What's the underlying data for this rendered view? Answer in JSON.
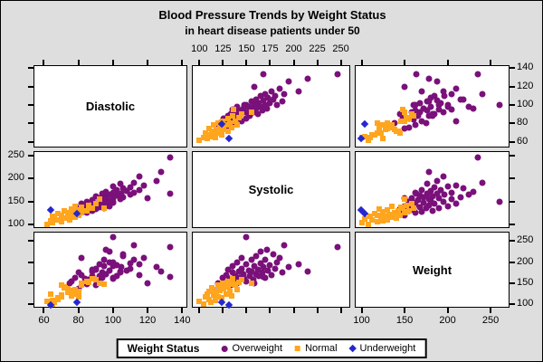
{
  "colors": {
    "overweight": "#7A107A",
    "normal": "#FFA51E",
    "underweight": "#2727CF",
    "canvas_bg": "#DEDEDE",
    "panel_bg": "#FFFFFF",
    "frame": "#000000"
  },
  "legend": {
    "title": "Weight Status",
    "entries": [
      {
        "label": "Overweight",
        "marker": "circle-icon",
        "color": "#7A107A"
      },
      {
        "label": "Normal",
        "marker": "square-icon",
        "color": "#FFA51E"
      },
      {
        "label": "Underweight",
        "marker": "diamond-icon",
        "color": "#2727CF"
      }
    ]
  },
  "chart_data": {
    "type": "scatter",
    "subtype": "scatter-plot-matrix",
    "title": "Blood Pressure Trends by Weight Status",
    "subtitle": "in heart disease patients under 50",
    "diagonal": [
      "Diastolic",
      "Systolic",
      "Weight"
    ],
    "grid": false,
    "legend_position": "bottom",
    "axes": {
      "systolic": {
        "domain": [
          92,
          260
        ],
        "ticks": [
          100,
          125,
          150,
          175,
          200,
          225,
          250
        ],
        "coarse_ticks": [
          100,
          150,
          200,
          250
        ]
      },
      "diastolic": {
        "domain": [
          54,
          143
        ],
        "ticks": [
          60,
          80,
          100,
          120,
          140
        ]
      },
      "weight": {
        "domain": [
          92,
          272
        ],
        "ticks": [
          100,
          150,
          200,
          250
        ]
      }
    },
    "axis_label_sides": {
      "top": "systolic (column 2)",
      "left": "systolic (row 2)",
      "right": [
        "diastolic (row 1)",
        "weight (row 3)"
      ],
      "bottom": [
        "diastolic (column 1)",
        "weight (column 3)"
      ]
    },
    "cells": [
      {
        "row": 0,
        "col": 1,
        "x": "systolic",
        "y": "diastolic"
      },
      {
        "row": 0,
        "col": 2,
        "x": "weight",
        "y": "diastolic"
      },
      {
        "row": 1,
        "col": 0,
        "x": "diastolic",
        "y": "systolic"
      },
      {
        "row": 1,
        "col": 2,
        "x": "weight",
        "y": "systolic"
      },
      {
        "row": 2,
        "col": 0,
        "x": "diastolic",
        "y": "weight"
      },
      {
        "row": 2,
        "col": 1,
        "x": "systolic",
        "y": "weight"
      }
    ],
    "status_codes": {
      "O": "Overweight",
      "N": "Normal",
      "U": "Underweight"
    },
    "patient_columns": [
      "systolic",
      "diastolic",
      "weight",
      "status"
    ],
    "patients": [
      [
        120,
        75,
        150,
        "O"
      ],
      [
        122,
        80,
        138,
        "O"
      ],
      [
        125,
        78,
        162,
        "O"
      ],
      [
        126,
        85,
        148,
        "O"
      ],
      [
        128,
        82,
        170,
        "O"
      ],
      [
        130,
        76,
        155,
        "O"
      ],
      [
        130,
        88,
        182,
        "O"
      ],
      [
        132,
        84,
        160,
        "O"
      ],
      [
        133,
        90,
        145,
        "O"
      ],
      [
        135,
        80,
        175,
        "O"
      ],
      [
        135,
        95,
        190,
        "O"
      ],
      [
        137,
        86,
        158,
        "O"
      ],
      [
        138,
        92,
        168,
        "O"
      ],
      [
        140,
        85,
        150,
        "O"
      ],
      [
        140,
        98,
        200,
        "O"
      ],
      [
        142,
        88,
        178,
        "O"
      ],
      [
        143,
        94,
        162,
        "O"
      ],
      [
        145,
        90,
        185,
        "O"
      ],
      [
        145,
        82,
        210,
        "O"
      ],
      [
        147,
        96,
        172,
        "O"
      ],
      [
        148,
        100,
        160,
        "O"
      ],
      [
        150,
        92,
        195,
        "O"
      ],
      [
        150,
        85,
        155,
        "O"
      ],
      [
        150,
        100,
        260,
        "O"
      ],
      [
        152,
        98,
        180,
        "O"
      ],
      [
        153,
        88,
        166,
        "O"
      ],
      [
        155,
        95,
        205,
        "O"
      ],
      [
        155,
        104,
        178,
        "O"
      ],
      [
        157,
        92,
        158,
        "O"
      ],
      [
        158,
        100,
        190,
        "O"
      ],
      [
        158,
        120,
        150,
        "O"
      ],
      [
        160,
        96,
        172,
        "O"
      ],
      [
        160,
        106,
        215,
        "O"
      ],
      [
        162,
        90,
        182,
        "O"
      ],
      [
        163,
        102,
        168,
        "O"
      ],
      [
        165,
        98,
        225,
        "O"
      ],
      [
        165,
        110,
        196,
        "O"
      ],
      [
        167,
        94,
        176,
        "O"
      ],
      [
        168,
        105,
        188,
        "O"
      ],
      [
        168,
        133,
        164,
        "O"
      ],
      [
        170,
        100,
        162,
        "O"
      ],
      [
        170,
        112,
        205,
        "O"
      ],
      [
        172,
        96,
        230,
        "O"
      ],
      [
        173,
        108,
        180,
        "O"
      ],
      [
        175,
        102,
        192,
        "O"
      ],
      [
        176,
        115,
        170,
        "O"
      ],
      [
        178,
        106,
        218,
        "O"
      ],
      [
        180,
        110,
        185,
        "O"
      ],
      [
        182,
        100,
        200,
        "O"
      ],
      [
        185,
        118,
        210,
        "O"
      ],
      [
        188,
        104,
        176,
        "O"
      ],
      [
        190,
        112,
        240,
        "O"
      ],
      [
        195,
        125,
        188,
        "O"
      ],
      [
        205,
        115,
        195,
        "O"
      ],
      [
        215,
        128,
        178,
        "O"
      ],
      [
        247,
        133,
        235,
        "O"
      ],
      [
        100,
        62,
        108,
        "N"
      ],
      [
        104,
        65,
        100,
        "N"
      ],
      [
        106,
        70,
        118,
        "N"
      ],
      [
        108,
        64,
        125,
        "N"
      ],
      [
        110,
        68,
        112,
        "N"
      ],
      [
        110,
        75,
        130,
        "N"
      ],
      [
        112,
        66,
        104,
        "N"
      ],
      [
        113,
        72,
        140,
        "N"
      ],
      [
        115,
        70,
        122,
        "N"
      ],
      [
        115,
        78,
        135,
        "N"
      ],
      [
        117,
        65,
        110,
        "N"
      ],
      [
        118,
        74,
        128,
        "N"
      ],
      [
        120,
        70,
        145,
        "N"
      ],
      [
        120,
        80,
        118,
        "N"
      ],
      [
        122,
        76,
        132,
        "N"
      ],
      [
        124,
        68,
        115,
        "N"
      ],
      [
        125,
        82,
        150,
        "N"
      ],
      [
        126,
        74,
        138,
        "N"
      ],
      [
        128,
        78,
        125,
        "N"
      ],
      [
        130,
        72,
        142,
        "N"
      ],
      [
        130,
        85,
        155,
        "N"
      ],
      [
        132,
        80,
        130,
        "N"
      ],
      [
        134,
        76,
        120,
        "N"
      ],
      [
        135,
        88,
        160,
        "N"
      ],
      [
        136,
        95,
        148,
        "N"
      ],
      [
        138,
        82,
        146,
        "N"
      ],
      [
        140,
        78,
        135,
        "N"
      ],
      [
        142,
        86,
        152,
        "N"
      ],
      [
        145,
        90,
        158,
        "N"
      ],
      [
        155,
        92,
        150,
        "N"
      ],
      [
        131,
        64,
        99,
        "U"
      ],
      [
        124,
        79,
        104,
        "U"
      ]
    ]
  }
}
